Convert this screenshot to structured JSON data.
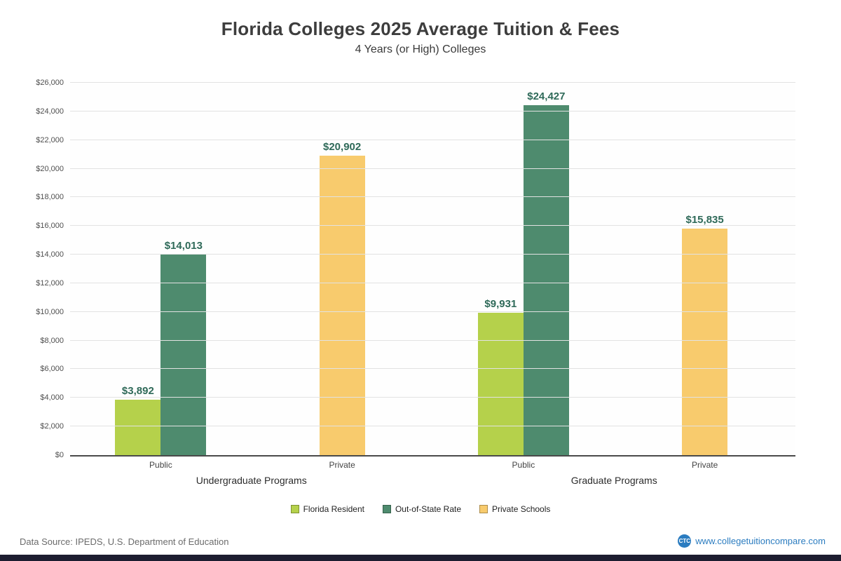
{
  "header": {
    "title": "Florida Colleges 2025 Average Tuition & Fees",
    "subtitle": "4 Years (or High)  Colleges"
  },
  "chart_data": {
    "type": "bar",
    "title": "Florida Colleges 2025 Average Tuition & Fees",
    "subtitle": "4 Years (or High)  Colleges",
    "ylim": [
      0,
      26000
    ],
    "ytick_step": 2000,
    "ytick_format": "$#,###",
    "grid": true,
    "legend_position": "bottom",
    "colors": {
      "Florida Resident": "#b5d14b",
      "Out-of-State Rate": "#4e8b6e",
      "Private Schools": "#f8cb6d"
    },
    "label_color": "#2f6a59",
    "groups": [
      {
        "label": "Public",
        "section": "Undergraduate Programs",
        "bars": [
          {
            "series": "Florida Resident",
            "value": 3892,
            "label": "$3,892"
          },
          {
            "series": "Out-of-State Rate",
            "value": 14013,
            "label": "$14,013"
          }
        ]
      },
      {
        "label": "Private",
        "section": "Undergraduate Programs",
        "bars": [
          {
            "series": "Private Schools",
            "value": 20902,
            "label": "$20,902"
          }
        ]
      },
      {
        "label": "Public",
        "section": "Graduate Programs",
        "bars": [
          {
            "series": "Florida Resident",
            "value": 9931,
            "label": "$9,931"
          },
          {
            "series": "Out-of-State Rate",
            "value": 24427,
            "label": "$24,427"
          }
        ]
      },
      {
        "label": "Private",
        "section": "Graduate Programs",
        "bars": [
          {
            "series": "Private Schools",
            "value": 15835,
            "label": "$15,835"
          }
        ]
      }
    ],
    "sections": [
      "Undergraduate Programs",
      "Graduate Programs"
    ],
    "legend": [
      {
        "label": "Florida Resident",
        "color": "#b5d14b"
      },
      {
        "label": "Out-of-State Rate",
        "color": "#4e8b6e"
      },
      {
        "label": "Private Schools",
        "color": "#f8cb6d"
      }
    ]
  },
  "footer": {
    "source": "Data Source: IPEDS, U.S. Department of Education",
    "site": "www.collegetuitioncompare.com",
    "logo": "CTC"
  }
}
